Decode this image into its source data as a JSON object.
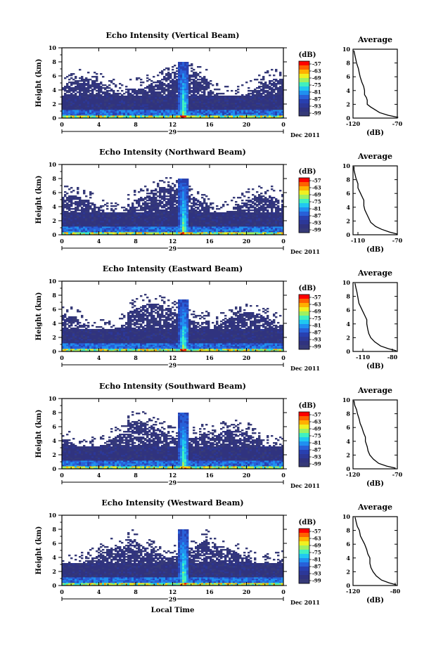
{
  "colorbar": {
    "unit": "(dB)",
    "ticks": [
      "-57",
      "-63",
      "-69",
      "-75",
      "-81",
      "-87",
      "-93",
      "-99"
    ],
    "colors": [
      "#ff0000",
      "#ff6000",
      "#ffb000",
      "#f0f020",
      "#a0f060",
      "#40f0c0",
      "#20c8f0",
      "#2090f0",
      "#2860d8",
      "#2840b0",
      "#2c3898",
      "#30337f",
      "#363a78"
    ]
  },
  "xaxis": {
    "ticks": [
      "0",
      "4",
      "8",
      "12",
      "16",
      "20",
      "0"
    ],
    "day": "29",
    "month": "Dec 2011",
    "label": "Local Time"
  },
  "yaxis": {
    "label": "Height (km)",
    "ticks": [
      "0",
      "2",
      "4",
      "6",
      "8",
      "10"
    ]
  },
  "chart_data": [
    {
      "type": "heatmap",
      "title": "Echo Intensity (Vertical Beam)",
      "xlabel": "",
      "ylabel": "Height (km)",
      "xlim": [
        0,
        24
      ],
      "ylim": [
        0,
        10
      ],
      "spike_hour": 13.2,
      "spike_top_km": 8,
      "average": {
        "title": "Average",
        "xlabel": "(dB)",
        "xticks": [
          "-120",
          "-70"
        ],
        "xlim": [
          -120,
          -70
        ],
        "profile": [
          [
            -69,
            0.1
          ],
          [
            -80,
            0.4
          ],
          [
            -90,
            0.8
          ],
          [
            -95,
            1.2
          ],
          [
            -100,
            1.6
          ],
          [
            -104,
            2.0
          ],
          [
            -104,
            2.6
          ],
          [
            -105,
            3.0
          ],
          [
            -107,
            3.4
          ],
          [
            -107,
            4.0
          ],
          [
            -108,
            4.6
          ],
          [
            -110,
            5.2
          ],
          [
            -112,
            6.0
          ],
          [
            -113,
            6.6
          ],
          [
            -114,
            7.2
          ],
          [
            -116,
            8.0
          ],
          [
            -117,
            8.6
          ],
          [
            -118,
            9.2
          ],
          [
            -119,
            9.8
          ]
        ]
      }
    },
    {
      "type": "heatmap",
      "title": "Echo Intensity (Northward Beam)",
      "xlabel": "",
      "ylabel": "Height (km)",
      "xlim": [
        0,
        24
      ],
      "ylim": [
        0,
        10
      ],
      "spike_hour": 13.2,
      "spike_top_km": 8,
      "average": {
        "title": "Average",
        "xlabel": "(dB)",
        "xticks": [
          "-110",
          "-70"
        ],
        "xlim": [
          -115,
          -70
        ],
        "profile": [
          [
            -70,
            0.1
          ],
          [
            -78,
            0.4
          ],
          [
            -86,
            0.8
          ],
          [
            -92,
            1.2
          ],
          [
            -97,
            1.8
          ],
          [
            -99,
            2.4
          ],
          [
            -101,
            3.0
          ],
          [
            -103,
            3.6
          ],
          [
            -104,
            4.2
          ],
          [
            -104,
            5.0
          ],
          [
            -106,
            5.6
          ],
          [
            -108,
            6.2
          ],
          [
            -110,
            6.8
          ],
          [
            -110,
            7.4
          ],
          [
            -112,
            8.2
          ],
          [
            -113,
            8.8
          ],
          [
            -114,
            9.4
          ],
          [
            -114,
            9.9
          ]
        ]
      }
    },
    {
      "type": "heatmap",
      "title": "Echo Intensity (Eastward Beam)",
      "xlabel": "",
      "ylabel": "Height (km)",
      "xlim": [
        0,
        24
      ],
      "ylim": [
        0,
        10
      ],
      "spike_hour": 13.2,
      "spike_top_km": 7.5,
      "average": {
        "title": "Average",
        "xlabel": "(dB)",
        "xticks": [
          "-110",
          "-80"
        ],
        "xlim": [
          -120,
          -75
        ],
        "profile": [
          [
            -76,
            0.1
          ],
          [
            -84,
            0.4
          ],
          [
            -92,
            0.8
          ],
          [
            -98,
            1.4
          ],
          [
            -102,
            2.0
          ],
          [
            -104,
            2.6
          ],
          [
            -105,
            3.2
          ],
          [
            -106,
            4.0
          ],
          [
            -106,
            4.6
          ],
          [
            -108,
            5.2
          ],
          [
            -110,
            5.8
          ],
          [
            -112,
            6.4
          ],
          [
            -114,
            7.0
          ],
          [
            -115,
            7.8
          ],
          [
            -116,
            8.6
          ],
          [
            -117,
            9.2
          ],
          [
            -118,
            9.9
          ]
        ]
      }
    },
    {
      "type": "heatmap",
      "title": "Echo Intensity (Southward Beam)",
      "xlabel": "",
      "ylabel": "Height (km)",
      "xlim": [
        0,
        24
      ],
      "ylim": [
        0,
        10
      ],
      "spike_hour": 13.2,
      "spike_top_km": 8,
      "average": {
        "title": "Average",
        "xlabel": "(dB)",
        "xticks": [
          "-120",
          "-70"
        ],
        "xlim": [
          -120,
          -70
        ],
        "profile": [
          [
            -72,
            0.1
          ],
          [
            -82,
            0.4
          ],
          [
            -91,
            0.8
          ],
          [
            -97,
            1.4
          ],
          [
            -101,
            2.0
          ],
          [
            -103,
            2.6
          ],
          [
            -104,
            3.2
          ],
          [
            -106,
            4.0
          ],
          [
            -106,
            4.6
          ],
          [
            -108,
            5.2
          ],
          [
            -110,
            6.0
          ],
          [
            -112,
            6.6
          ],
          [
            -113,
            7.2
          ],
          [
            -115,
            8.0
          ],
          [
            -116,
            8.6
          ],
          [
            -118,
            9.2
          ],
          [
            -119,
            9.9
          ]
        ]
      }
    },
    {
      "type": "heatmap",
      "title": "Echo Intensity (Westward Beam)",
      "xlabel": "Local Time",
      "ylabel": "Height (km)",
      "xlim": [
        0,
        24
      ],
      "ylim": [
        0,
        10
      ],
      "spike_hour": 13.2,
      "spike_top_km": 8,
      "average": {
        "title": "Average",
        "xlabel": "(dB)",
        "xticks": [
          "-120",
          "-80"
        ],
        "xlim": [
          -120,
          -78
        ],
        "profile": [
          [
            -79,
            0.1
          ],
          [
            -86,
            0.4
          ],
          [
            -93,
            0.8
          ],
          [
            -98,
            1.4
          ],
          [
            -101,
            2.0
          ],
          [
            -103,
            2.6
          ],
          [
            -104,
            3.2
          ],
          [
            -104,
            4.0
          ],
          [
            -106,
            4.6
          ],
          [
            -107,
            5.2
          ],
          [
            -109,
            6.0
          ],
          [
            -111,
            6.6
          ],
          [
            -113,
            7.2
          ],
          [
            -114,
            8.0
          ],
          [
            -116,
            8.6
          ],
          [
            -117,
            9.2
          ],
          [
            -118,
            9.9
          ]
        ]
      }
    }
  ]
}
